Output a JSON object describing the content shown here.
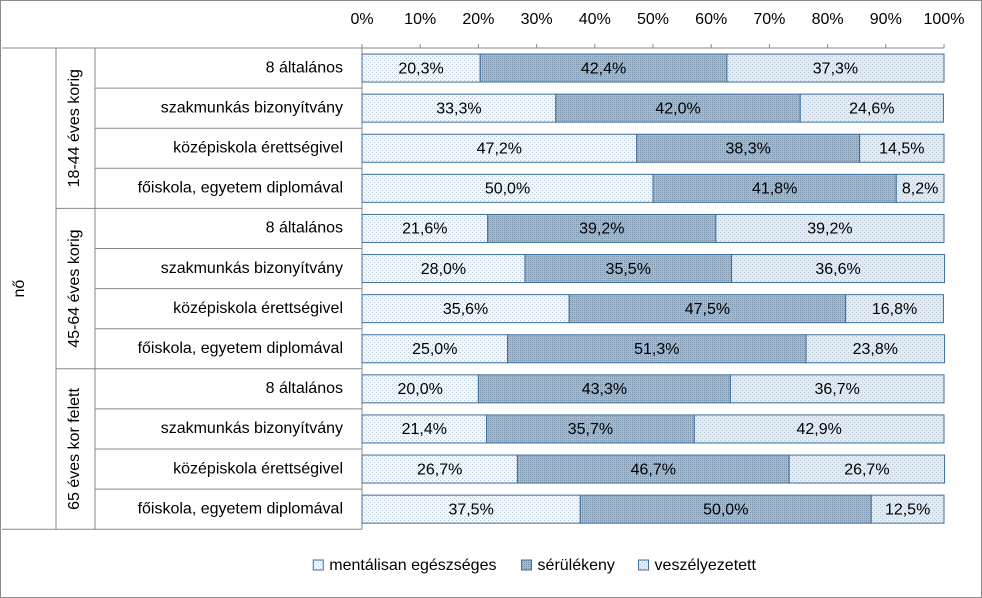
{
  "chart_data": {
    "type": "bar",
    "orientation": "horizontal",
    "stacked": true,
    "super_group": "nő",
    "groups": [
      {
        "name": "18-44 éves korig",
        "categories": [
          "8 általános",
          "szakmunkás bizonyítvány",
          "középiskola érettségivel",
          "főiskola, egyetem diplomával"
        ]
      },
      {
        "name": "45-64 éves korig",
        "categories": [
          "8 általános",
          "szakmunkás bizonyítvány",
          "középiskola érettségivel",
          "főiskola, egyetem diplomával"
        ]
      },
      {
        "name": "65 éves kor felett",
        "categories": [
          "8 általános",
          "szakmunkás bizonyítvány",
          "középiskola érettségivel",
          "főiskola, egyetem diplomával"
        ]
      }
    ],
    "series": [
      {
        "name": "mentálisan egészséges",
        "color": "#f3f6fa",
        "values": [
          20.3,
          33.3,
          47.2,
          50.0,
          21.6,
          28.0,
          35.6,
          25.0,
          20.0,
          21.4,
          26.7,
          37.5
        ],
        "value_labels": [
          "20,3%",
          "33,3%",
          "47,2%",
          "50,0%",
          "21,6%",
          "28,0%",
          "35,6%",
          "25,0%",
          "20,0%",
          "21,4%",
          "26,7%",
          "37,5%"
        ]
      },
      {
        "name": "sérülékeny",
        "color": "#a8b9c9",
        "values": [
          42.4,
          42.0,
          38.3,
          41.8,
          39.2,
          35.5,
          47.5,
          51.3,
          43.3,
          35.7,
          46.7,
          50.0
        ],
        "value_labels": [
          "42,4%",
          "42,0%",
          "38,3%",
          "41,8%",
          "39,2%",
          "35,5%",
          "47,5%",
          "51,3%",
          "43,3%",
          "35,7%",
          "46,7%",
          "50,0%"
        ]
      },
      {
        "name": "veszélyezetett",
        "color": "#e3eaf1",
        "values": [
          37.3,
          24.6,
          14.5,
          8.2,
          39.2,
          36.6,
          16.8,
          23.8,
          36.7,
          42.9,
          26.7,
          12.5
        ],
        "value_labels": [
          "37,3%",
          "24,6%",
          "14,5%",
          "8,2%",
          "39,2%",
          "36,6%",
          "16,8%",
          "23,8%",
          "36,7%",
          "42,9%",
          "26,7%",
          "12,5%"
        ]
      }
    ],
    "xlim": [
      0,
      100
    ],
    "xticks": [
      {
        "value": 0,
        "label": "0%"
      },
      {
        "value": 10,
        "label": "10%"
      },
      {
        "value": 20,
        "label": "20%"
      },
      {
        "value": 30,
        "label": "30%"
      },
      {
        "value": 40,
        "label": "40%"
      },
      {
        "value": 50,
        "label": "50%"
      },
      {
        "value": 60,
        "label": "60%"
      },
      {
        "value": 70,
        "label": "70%"
      },
      {
        "value": 80,
        "label": "80%"
      },
      {
        "value": 90,
        "label": "90%"
      },
      {
        "value": 100,
        "label": "100%"
      }
    ],
    "legend": "bottom"
  }
}
